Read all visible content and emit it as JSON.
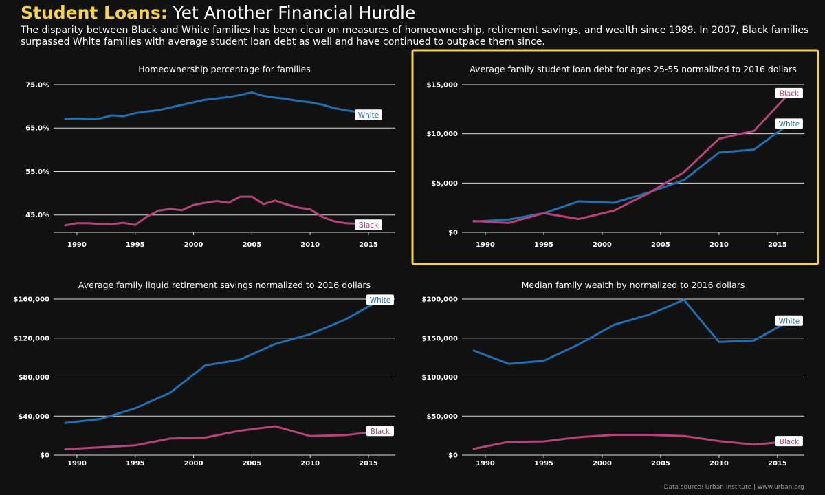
{
  "header": {
    "title_bold": "Student Loans:",
    "title_rest": "Yet Another Financial Hurdle",
    "subtitle": "The disparity between Black and White families has been clear on measures of homeownership, retirement savings, and wealth since 1989. In 2007, Black families surpassed White families with average student loan debt as well and have continued to outpace them since."
  },
  "source": "Data source: Urban Institute | www.urban.org",
  "colors": {
    "white_series": "#1f6fb2",
    "black_series": "#b5437a",
    "highlight": "#f5d547"
  },
  "chart_data": [
    {
      "type": "line",
      "id": "homeownership",
      "title": "Homeownership percentage for families",
      "ylim": [
        41,
        75
      ],
      "yticks": [
        45,
        55,
        65,
        75
      ],
      "ytick_labels": [
        "45.0%",
        "55.0%",
        "65.0%",
        "75.0%"
      ],
      "xlim": [
        1988,
        2017.3
      ],
      "xticks": [
        1990,
        1995,
        2000,
        2005,
        2010,
        2015
      ],
      "xtick_labels": [
        "1990",
        "1995",
        "2000",
        "2005",
        "2010",
        "2015"
      ],
      "grid": true,
      "highlighted": false,
      "series": [
        {
          "name": "White",
          "x": [
            1989,
            1990,
            1991,
            1992,
            1993,
            1994,
            1995,
            1996,
            1997,
            1998,
            1999,
            2000,
            2001,
            2002,
            2003,
            2004,
            2005,
            2006,
            2007,
            2008,
            2009,
            2010,
            2011,
            2012,
            2013,
            2014,
            2015
          ],
          "y": [
            67.1,
            67.2,
            67.1,
            67.2,
            67.9,
            67.7,
            68.4,
            68.8,
            69.1,
            69.7,
            70.3,
            70.9,
            71.5,
            71.8,
            72.1,
            72.6,
            73.2,
            72.4,
            72.0,
            71.7,
            71.2,
            70.9,
            70.4,
            69.6,
            69.1,
            68.7,
            68.0
          ]
        },
        {
          "name": "Black",
          "x": [
            1989,
            1990,
            1991,
            1992,
            1993,
            1994,
            1995,
            1996,
            1997,
            1998,
            1999,
            2000,
            2001,
            2002,
            2003,
            2004,
            2005,
            2006,
            2007,
            2008,
            2009,
            2010,
            2011,
            2012,
            2013,
            2014,
            2015
          ],
          "y": [
            42.6,
            43.1,
            43.1,
            42.9,
            42.9,
            43.2,
            42.7,
            44.6,
            46.0,
            46.4,
            46.1,
            47.3,
            47.8,
            48.2,
            47.8,
            49.2,
            49.2,
            47.5,
            48.3,
            47.4,
            46.7,
            46.3,
            44.6,
            43.6,
            43.1,
            43.0,
            42.7
          ]
        }
      ]
    },
    {
      "type": "line",
      "id": "student-loan",
      "title": "Average family student loan debt for ages 25-55 normalized to 2016 dollars",
      "ylim": [
        0,
        15000
      ],
      "yticks": [
        0,
        5000,
        10000,
        15000
      ],
      "ytick_labels": [
        "$0",
        "$5,000",
        "$10,000",
        "$15,000"
      ],
      "xlim": [
        1988,
        2017.3
      ],
      "xticks": [
        1990,
        1995,
        2000,
        2005,
        2010,
        2015
      ],
      "xtick_labels": [
        "1990",
        "1995",
        "2000",
        "2005",
        "2010",
        "2015"
      ],
      "grid": true,
      "highlighted": true,
      "series": [
        {
          "name": "White",
          "x": [
            1989,
            1992,
            1995,
            1998,
            2001,
            2004,
            2007,
            2010,
            2013,
            2016
          ],
          "y": [
            1100,
            1300,
            1950,
            3150,
            3000,
            4050,
            5300,
            8100,
            8400,
            11000
          ]
        },
        {
          "name": "Black",
          "x": [
            1989,
            1992,
            1995,
            1998,
            2001,
            2004,
            2007,
            2010,
            2013,
            2016
          ],
          "y": [
            1150,
            950,
            1950,
            1350,
            2200,
            4000,
            6100,
            9500,
            10300,
            14100
          ]
        }
      ]
    },
    {
      "type": "line",
      "id": "retirement",
      "title": "Average family liquid retirement savings normalized to 2016 dollars",
      "ylim": [
        0,
        160000
      ],
      "yticks": [
        0,
        40000,
        80000,
        120000,
        160000
      ],
      "ytick_labels": [
        "$0",
        "$40,000",
        "$80,000",
        "$120,000",
        "$160,000"
      ],
      "xlim": [
        1988,
        2017.3
      ],
      "xticks": [
        1990,
        1995,
        2000,
        2005,
        2010,
        2015
      ],
      "xtick_labels": [
        "1990",
        "1995",
        "2000",
        "2005",
        "2010",
        "2015"
      ],
      "grid": true,
      "highlighted": false,
      "series": [
        {
          "name": "White",
          "x": [
            1989,
            1992,
            1995,
            1998,
            2001,
            2004,
            2007,
            2010,
            2013,
            2016
          ],
          "y": [
            33000,
            37000,
            48000,
            64000,
            92000,
            98000,
            114000,
            124000,
            139000,
            159000
          ]
        },
        {
          "name": "Black",
          "x": [
            1989,
            1992,
            1995,
            1998,
            2001,
            2004,
            2007,
            2010,
            2013,
            2016
          ],
          "y": [
            6000,
            8000,
            10000,
            17000,
            18000,
            25000,
            29500,
            19500,
            20500,
            24500
          ]
        }
      ]
    },
    {
      "type": "line",
      "id": "wealth",
      "title": "Median family wealth by normalized to 2016 dollars",
      "ylim": [
        0,
        200000
      ],
      "yticks": [
        0,
        50000,
        100000,
        150000,
        200000
      ],
      "ytick_labels": [
        "$0",
        "$50,000",
        "$100,000",
        "$150,000",
        "$200,000"
      ],
      "xlim": [
        1988,
        2017.3
      ],
      "xticks": [
        1990,
        1995,
        2000,
        2005,
        2010,
        2015
      ],
      "xtick_labels": [
        "1990",
        "1995",
        "2000",
        "2005",
        "2010",
        "2015"
      ],
      "grid": true,
      "highlighted": false,
      "series": [
        {
          "name": "White",
          "x": [
            1989,
            1992,
            1995,
            1998,
            2001,
            2004,
            2007,
            2010,
            2013,
            2016
          ],
          "y": [
            134000,
            117000,
            121000,
            142000,
            167000,
            180000,
            199000,
            145000,
            147000,
            172000
          ]
        },
        {
          "name": "Black",
          "x": [
            1989,
            1992,
            1995,
            1998,
            2001,
            2004,
            2007,
            2010,
            2013,
            2016
          ],
          "y": [
            8000,
            17000,
            17500,
            23000,
            26000,
            26000,
            24500,
            18000,
            13500,
            17500
          ]
        }
      ]
    }
  ]
}
